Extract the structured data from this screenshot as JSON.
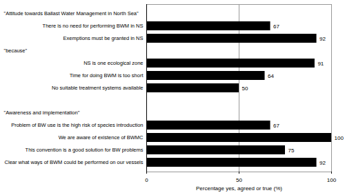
{
  "chart_data": {
    "type": "bar",
    "orientation": "horizontal",
    "categories": [
      "\"Attitude towards Ballast Water Management in North Sea\"",
      "There is no need for performing BWM in NS",
      "Exemptions must be granted in NS",
      "\"because\"",
      "NS is one ecological zone",
      "Time for doing BWM is too short",
      "No suitable treatment systems available",
      null,
      "\"Awareness and implementation\"",
      "Problem of BW use is the high risk of species introduction",
      "We are aware of existence of BWMC",
      "This convention is a good solution for BW problems",
      "Clear what ways of BWM could be performed on our vessels"
    ],
    "values": [
      null,
      67,
      92,
      null,
      91,
      64,
      50,
      null,
      null,
      67,
      100,
      75,
      92
    ],
    "color": "#000000",
    "x_label": "Percentage yes, agreed or true (%)",
    "xlim": [
      0,
      100
    ],
    "xticks": [
      0,
      50,
      100
    ],
    "grid": true,
    "data_labels": true
  }
}
